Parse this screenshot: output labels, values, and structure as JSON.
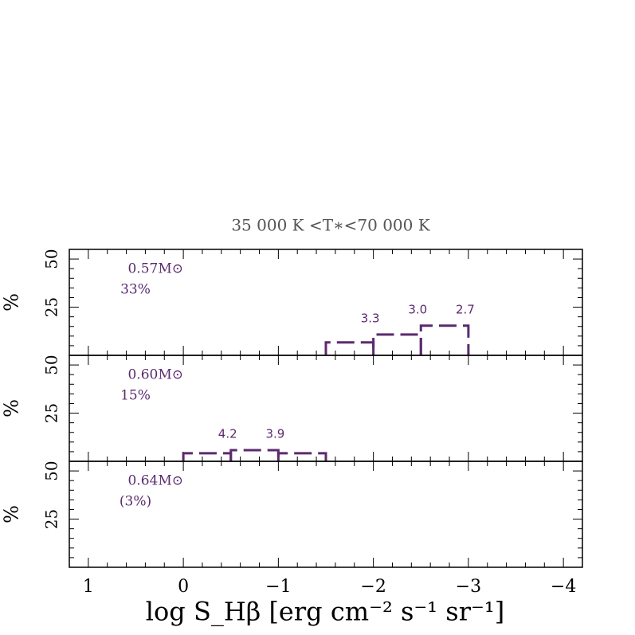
{
  "chart_data": [
    {
      "type": "histogram",
      "title": "35 000 K <T∗<70 000 K",
      "ylabel": "%",
      "mass_label": "0.57M⊙",
      "fraction_label": "33%",
      "bins": [
        -1.5,
        -2,
        -2.5,
        -3
      ],
      "values": [
        6.7,
        10.8,
        15.4
      ],
      "color": "#5b2a6e",
      "annotations": [
        {
          "text": "3.3",
          "x": -2
        },
        {
          "text": "3.0",
          "x": -2.5
        },
        {
          "text": "2.7",
          "x": -3
        }
      ],
      "ylim": [
        0,
        55
      ],
      "yticks": [
        25,
        50
      ]
    },
    {
      "type": "histogram",
      "ylabel": "%",
      "mass_label": "0.60M⊙",
      "fraction_label": "15%",
      "bins": [
        0,
        -0.5,
        -1,
        -1.5
      ],
      "values": [
        4.2,
        5.8,
        4.2
      ],
      "color": "#5b2a6e",
      "annotations": [
        {
          "text": "4.2",
          "x": -0.5
        },
        {
          "text": "3.9",
          "x": -1
        }
      ],
      "ylim": [
        0,
        55
      ],
      "yticks": [
        25,
        50
      ]
    },
    {
      "type": "histogram",
      "ylabel": "%",
      "mass_label": "0.64M⊙",
      "fraction_label": "(3%)",
      "color": "#5b2a6e",
      "ylim": [
        0,
        55
      ],
      "yticks": [
        25,
        50
      ],
      "xlabel": "log S_Hβ [erg cm⁻² s⁻¹ sr⁻¹]",
      "xlim": [
        1.2,
        -4.2
      ],
      "xticks": [
        1,
        0,
        {
          "value": -1,
          "label": "−1"
        },
        {
          "value": -2,
          "label": "−2"
        },
        {
          "value": -3,
          "label": "−3"
        },
        {
          "value": -4,
          "label": "−4"
        }
      ]
    }
  ]
}
